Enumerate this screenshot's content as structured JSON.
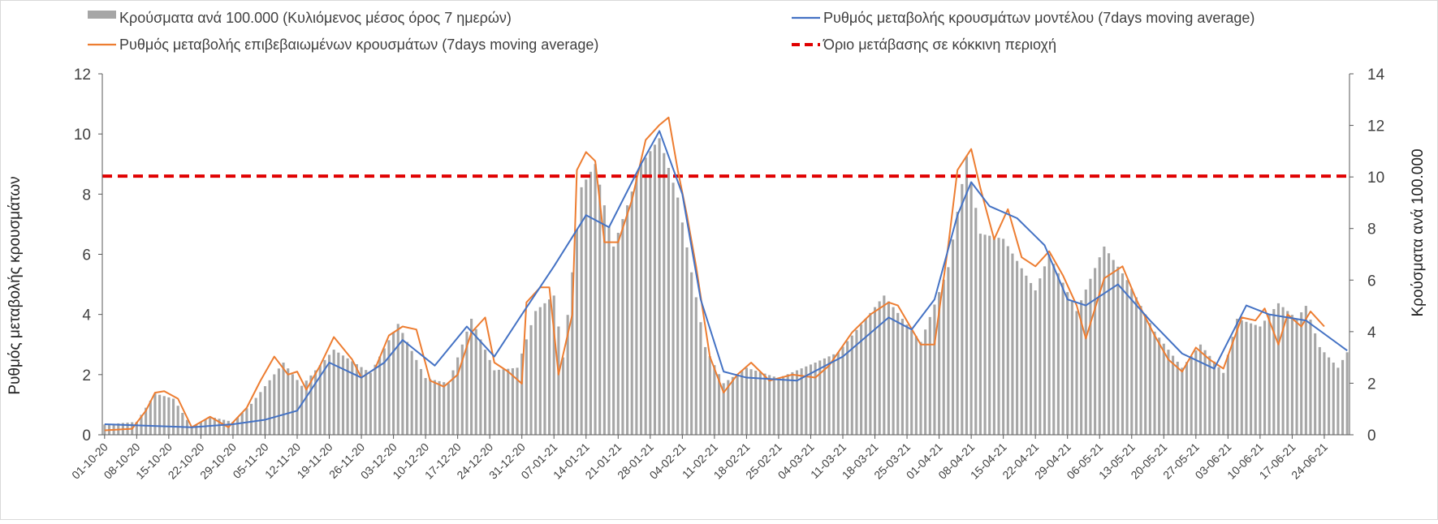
{
  "chart_data": {
    "type": "bar+line",
    "legend": {
      "items": [
        {
          "key": "bars",
          "label": "Κρούσματα ανά 100.000 (Κυλιόμενος μέσος όρος 7 ημερών)",
          "color": "#a6a6a6",
          "symbol": "bar"
        },
        {
          "key": "model",
          "label": "Ρυθμός μεταβολής κρουσμάτων μοντέλου (7days moving average)",
          "color": "#4472c4",
          "symbol": "line"
        },
        {
          "key": "confirmed",
          "label": "Ρυθμός μεταβολής επιβεβαιωμένων κρουσμάτων (7days moving average)",
          "color": "#ed7d31",
          "symbol": "line"
        },
        {
          "key": "threshold",
          "label": "Όριο μετάβασης σε κόκκινη περιοχή",
          "color": "#e00000",
          "symbol": "dashed"
        }
      ]
    },
    "y_left": {
      "label": "Ρυθμός μεταβολής κρουσμάτων",
      "min": 0,
      "max": 12,
      "ticks": [
        "0",
        "2",
        "4",
        "6",
        "8",
        "10",
        "12"
      ]
    },
    "y_right": {
      "label": "Κρούσματα ανά 100.000",
      "min": 0,
      "max": 14,
      "ticks": [
        "0",
        "2",
        "4",
        "6",
        "8",
        "10",
        "12",
        "14"
      ]
    },
    "x": {
      "start": "2020-10-01",
      "days": 272,
      "tick_labels": [
        "01-10-20",
        "08-10-20",
        "15-10-20",
        "22-10-20",
        "29-10-20",
        "05-11-20",
        "12-11-20",
        "19-11-20",
        "26-11-20",
        "03-12-20",
        "10-12-20",
        "17-12-20",
        "24-12-20",
        "31-12-20",
        "07-01-21",
        "14-01-21",
        "21-01-21",
        "28-01-21",
        "04-02-21",
        "11-02-21",
        "18-02-21",
        "25-02-21",
        "04-03-21",
        "11-03-21",
        "18-03-21",
        "25-03-21",
        "01-04-21",
        "08-04-21",
        "15-04-21",
        "22-04-21",
        "29-04-21",
        "06-05-21",
        "13-05-21",
        "20-05-21",
        "27-05-21",
        "03-06-21",
        "10-06-21",
        "17-06-21",
        "24-06-21"
      ]
    },
    "threshold_value": 8.6,
    "bars_anchors": [
      {
        "d": "2020-10-01",
        "v": 0.4
      },
      {
        "d": "2020-10-08",
        "v": 0.5
      },
      {
        "d": "2020-10-12",
        "v": 1.6
      },
      {
        "d": "2020-10-16",
        "v": 1.4
      },
      {
        "d": "2020-10-20",
        "v": 0.3
      },
      {
        "d": "2020-10-24",
        "v": 0.7
      },
      {
        "d": "2020-10-29",
        "v": 0.5
      },
      {
        "d": "2020-11-02",
        "v": 1.2
      },
      {
        "d": "2020-11-09",
        "v": 2.8
      },
      {
        "d": "2020-11-13",
        "v": 1.9
      },
      {
        "d": "2020-11-20",
        "v": 3.3
      },
      {
        "d": "2020-11-28",
        "v": 2.4
      },
      {
        "d": "2020-12-04",
        "v": 4.3
      },
      {
        "d": "2020-12-10",
        "v": 2.2
      },
      {
        "d": "2020-12-15",
        "v": 2.0
      },
      {
        "d": "2020-12-20",
        "v": 4.5
      },
      {
        "d": "2020-12-25",
        "v": 2.5
      },
      {
        "d": "2020-12-30",
        "v": 2.6
      },
      {
        "d": "2021-01-03",
        "v": 4.8
      },
      {
        "d": "2021-01-07",
        "v": 5.4
      },
      {
        "d": "2021-01-09",
        "v": 3.0
      },
      {
        "d": "2021-01-13",
        "v": 9.6
      },
      {
        "d": "2021-01-16",
        "v": 10.5
      },
      {
        "d": "2021-01-20",
        "v": 7.3
      },
      {
        "d": "2021-01-26",
        "v": 10.5
      },
      {
        "d": "2021-01-30",
        "v": 11.5
      },
      {
        "d": "2021-02-03",
        "v": 9.2
      },
      {
        "d": "2021-02-09",
        "v": 3.4
      },
      {
        "d": "2021-02-13",
        "v": 2.0
      },
      {
        "d": "2021-02-18",
        "v": 2.6
      },
      {
        "d": "2021-02-25",
        "v": 2.2
      },
      {
        "d": "2021-03-05",
        "v": 2.8
      },
      {
        "d": "2021-03-10",
        "v": 3.2
      },
      {
        "d": "2021-03-16",
        "v": 4.5
      },
      {
        "d": "2021-03-20",
        "v": 5.4
      },
      {
        "d": "2021-03-24",
        "v": 4.5
      },
      {
        "d": "2021-03-28",
        "v": 3.6
      },
      {
        "d": "2021-04-03",
        "v": 6.5
      },
      {
        "d": "2021-04-07",
        "v": 10.8
      },
      {
        "d": "2021-04-10",
        "v": 7.8
      },
      {
        "d": "2021-04-15",
        "v": 7.6
      },
      {
        "d": "2021-04-22",
        "v": 5.6
      },
      {
        "d": "2021-04-25",
        "v": 7.0
      },
      {
        "d": "2021-05-01",
        "v": 4.8
      },
      {
        "d": "2021-05-07",
        "v": 7.3
      },
      {
        "d": "2021-05-12",
        "v": 6.0
      },
      {
        "d": "2021-05-18",
        "v": 4.0
      },
      {
        "d": "2021-05-24",
        "v": 2.6
      },
      {
        "d": "2021-05-28",
        "v": 3.5
      },
      {
        "d": "2021-06-02",
        "v": 2.4
      },
      {
        "d": "2021-06-05",
        "v": 4.5
      },
      {
        "d": "2021-06-10",
        "v": 4.2
      },
      {
        "d": "2021-06-14",
        "v": 5.1
      },
      {
        "d": "2021-06-18",
        "v": 4.5
      },
      {
        "d": "2021-06-20",
        "v": 5.0
      },
      {
        "d": "2021-06-23",
        "v": 3.4
      },
      {
        "d": "2021-06-27",
        "v": 2.6
      },
      {
        "d": "2021-06-29",
        "v": 3.2
      }
    ],
    "model_anchors": [
      {
        "d": "2020-10-01",
        "v": 0.35
      },
      {
        "d": "2020-10-20",
        "v": 0.25
      },
      {
        "d": "2020-10-29",
        "v": 0.35
      },
      {
        "d": "2020-11-05",
        "v": 0.5
      },
      {
        "d": "2020-11-12",
        "v": 0.8
      },
      {
        "d": "2020-11-19",
        "v": 2.4
      },
      {
        "d": "2020-11-26",
        "v": 1.9
      },
      {
        "d": "2020-12-01",
        "v": 2.4
      },
      {
        "d": "2020-12-05",
        "v": 3.15
      },
      {
        "d": "2020-12-12",
        "v": 2.3
      },
      {
        "d": "2020-12-19",
        "v": 3.6
      },
      {
        "d": "2020-12-25",
        "v": 2.6
      },
      {
        "d": "2020-12-31",
        "v": 4.0
      },
      {
        "d": "2021-01-07",
        "v": 5.6
      },
      {
        "d": "2021-01-14",
        "v": 7.3
      },
      {
        "d": "2021-01-19",
        "v": 6.9
      },
      {
        "d": "2021-01-26",
        "v": 9.0
      },
      {
        "d": "2021-01-30",
        "v": 10.1
      },
      {
        "d": "2021-02-04",
        "v": 8.0
      },
      {
        "d": "2021-02-08",
        "v": 4.5
      },
      {
        "d": "2021-02-13",
        "v": 2.1
      },
      {
        "d": "2021-02-18",
        "v": 1.9
      },
      {
        "d": "2021-03-01",
        "v": 1.8
      },
      {
        "d": "2021-03-11",
        "v": 2.6
      },
      {
        "d": "2021-03-21",
        "v": 3.9
      },
      {
        "d": "2021-03-26",
        "v": 3.5
      },
      {
        "d": "2021-03-31",
        "v": 4.5
      },
      {
        "d": "2021-04-05",
        "v": 7.3
      },
      {
        "d": "2021-04-08",
        "v": 8.4
      },
      {
        "d": "2021-04-12",
        "v": 7.6
      },
      {
        "d": "2021-04-18",
        "v": 7.2
      },
      {
        "d": "2021-04-24",
        "v": 6.3
      },
      {
        "d": "2021-04-29",
        "v": 4.5
      },
      {
        "d": "2021-05-03",
        "v": 4.3
      },
      {
        "d": "2021-05-10",
        "v": 5.0
      },
      {
        "d": "2021-05-17",
        "v": 3.8
      },
      {
        "d": "2021-05-24",
        "v": 2.7
      },
      {
        "d": "2021-05-31",
        "v": 2.2
      },
      {
        "d": "2021-06-07",
        "v": 4.3
      },
      {
        "d": "2021-06-12",
        "v": 4.0
      },
      {
        "d": "2021-06-20",
        "v": 3.8
      },
      {
        "d": "2021-06-29",
        "v": 2.8
      }
    ],
    "confirmed_anchors": [
      {
        "d": "2020-10-01",
        "v": 0.15
      },
      {
        "d": "2020-10-07",
        "v": 0.2
      },
      {
        "d": "2020-10-10",
        "v": 0.8
      },
      {
        "d": "2020-10-12",
        "v": 1.4
      },
      {
        "d": "2020-10-14",
        "v": 1.45
      },
      {
        "d": "2020-10-17",
        "v": 1.2
      },
      {
        "d": "2020-10-20",
        "v": 0.25
      },
      {
        "d": "2020-10-24",
        "v": 0.6
      },
      {
        "d": "2020-10-28",
        "v": 0.25
      },
      {
        "d": "2020-11-01",
        "v": 0.9
      },
      {
        "d": "2020-11-04",
        "v": 1.8
      },
      {
        "d": "2020-11-07",
        "v": 2.6
      },
      {
        "d": "2020-11-10",
        "v": 2.0
      },
      {
        "d": "2020-11-12",
        "v": 2.1
      },
      {
        "d": "2020-11-14",
        "v": 1.5
      },
      {
        "d": "2020-11-17",
        "v": 2.3
      },
      {
        "d": "2020-11-20",
        "v": 3.25
      },
      {
        "d": "2020-11-24",
        "v": 2.5
      },
      {
        "d": "2020-11-26",
        "v": 1.9
      },
      {
        "d": "2020-11-29",
        "v": 2.2
      },
      {
        "d": "2020-12-02",
        "v": 3.3
      },
      {
        "d": "2020-12-05",
        "v": 3.6
      },
      {
        "d": "2020-12-08",
        "v": 3.5
      },
      {
        "d": "2020-12-11",
        "v": 1.8
      },
      {
        "d": "2020-12-14",
        "v": 1.6
      },
      {
        "d": "2020-12-17",
        "v": 2.0
      },
      {
        "d": "2020-12-20",
        "v": 3.4
      },
      {
        "d": "2020-12-23",
        "v": 3.9
      },
      {
        "d": "2020-12-25",
        "v": 2.4
      },
      {
        "d": "2020-12-28",
        "v": 2.1
      },
      {
        "d": "2020-12-31",
        "v": 1.7
      },
      {
        "d": "2021-01-01",
        "v": 4.4
      },
      {
        "d": "2021-01-04",
        "v": 4.9
      },
      {
        "d": "2021-01-06",
        "v": 4.9
      },
      {
        "d": "2021-01-08",
        "v": 2.0
      },
      {
        "d": "2021-01-11",
        "v": 4.0
      },
      {
        "d": "2021-01-12",
        "v": 8.8
      },
      {
        "d": "2021-01-14",
        "v": 9.4
      },
      {
        "d": "2021-01-16",
        "v": 9.1
      },
      {
        "d": "2021-01-18",
        "v": 6.4
      },
      {
        "d": "2021-01-21",
        "v": 6.4
      },
      {
        "d": "2021-01-24",
        "v": 7.8
      },
      {
        "d": "2021-01-27",
        "v": 9.8
      },
      {
        "d": "2021-01-30",
        "v": 10.3
      },
      {
        "d": "2021-02-01",
        "v": 10.55
      },
      {
        "d": "2021-02-03",
        "v": 8.8
      },
      {
        "d": "2021-02-05",
        "v": 7.3
      },
      {
        "d": "2021-02-07",
        "v": 5.6
      },
      {
        "d": "2021-02-10",
        "v": 2.6
      },
      {
        "d": "2021-02-13",
        "v": 1.4
      },
      {
        "d": "2021-02-16",
        "v": 2.0
      },
      {
        "d": "2021-02-19",
        "v": 2.4
      },
      {
        "d": "2021-02-23",
        "v": 1.8
      },
      {
        "d": "2021-02-28",
        "v": 2.0
      },
      {
        "d": "2021-03-05",
        "v": 1.9
      },
      {
        "d": "2021-03-08",
        "v": 2.3
      },
      {
        "d": "2021-03-13",
        "v": 3.4
      },
      {
        "d": "2021-03-17",
        "v": 4.0
      },
      {
        "d": "2021-03-21",
        "v": 4.4
      },
      {
        "d": "2021-03-23",
        "v": 4.3
      },
      {
        "d": "2021-03-28",
        "v": 3.0
      },
      {
        "d": "2021-03-31",
        "v": 3.0
      },
      {
        "d": "2021-04-03",
        "v": 6.3
      },
      {
        "d": "2021-04-05",
        "v": 8.8
      },
      {
        "d": "2021-04-08",
        "v": 9.5
      },
      {
        "d": "2021-04-10",
        "v": 8.2
      },
      {
        "d": "2021-04-13",
        "v": 6.5
      },
      {
        "d": "2021-04-16",
        "v": 7.5
      },
      {
        "d": "2021-04-19",
        "v": 5.9
      },
      {
        "d": "2021-04-22",
        "v": 5.6
      },
      {
        "d": "2021-04-25",
        "v": 6.1
      },
      {
        "d": "2021-04-28",
        "v": 5.3
      },
      {
        "d": "2021-05-01",
        "v": 4.3
      },
      {
        "d": "2021-05-03",
        "v": 3.2
      },
      {
        "d": "2021-05-07",
        "v": 5.2
      },
      {
        "d": "2021-05-11",
        "v": 5.6
      },
      {
        "d": "2021-05-14",
        "v": 4.5
      },
      {
        "d": "2021-05-18",
        "v": 3.3
      },
      {
        "d": "2021-05-21",
        "v": 2.5
      },
      {
        "d": "2021-05-24",
        "v": 2.1
      },
      {
        "d": "2021-05-27",
        "v": 2.9
      },
      {
        "d": "2021-05-30",
        "v": 2.5
      },
      {
        "d": "2021-06-02",
        "v": 2.2
      },
      {
        "d": "2021-06-06",
        "v": 3.9
      },
      {
        "d": "2021-06-09",
        "v": 3.8
      },
      {
        "d": "2021-06-11",
        "v": 4.2
      },
      {
        "d": "2021-06-14",
        "v": 3.0
      },
      {
        "d": "2021-06-16",
        "v": 4.0
      },
      {
        "d": "2021-06-19",
        "v": 3.6
      },
      {
        "d": "2021-06-21",
        "v": 4.1
      },
      {
        "d": "2021-06-24",
        "v": 3.6
      }
    ]
  }
}
